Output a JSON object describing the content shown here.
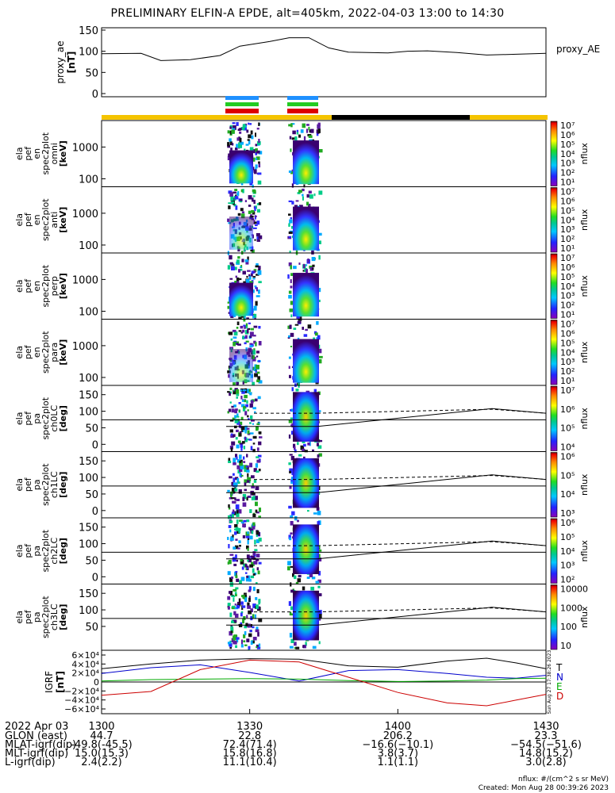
{
  "title": "PRELIMINARY ELFIN-A EPDE, alt=405km, 2022-04-03 13:00 to 14:30",
  "colors": {
    "fast": "#1e90ff",
    "green": "#22cc22",
    "red": "#dd0000",
    "yellow": "#f5c400",
    "black": "#000000"
  },
  "chart_data": [
    {
      "type": "line",
      "name": "proxy_ae",
      "ylabel_lines": [
        "proxy_ae",
        "[nT]"
      ],
      "legend": "proxy_AE",
      "ylim": [
        0,
        150
      ],
      "yticks": [
        0,
        50,
        100,
        150
      ],
      "x_minutes": [
        0,
        8,
        12,
        18,
        24,
        28,
        34,
        38,
        42,
        46,
        50,
        54,
        58,
        62,
        66,
        72,
        78,
        84,
        90
      ],
      "values": [
        94,
        95,
        78,
        80,
        90,
        112,
        123,
        132,
        132,
        108,
        98,
        97,
        96,
        100,
        101,
        97,
        91,
        93,
        95
      ]
    },
    {
      "type": "heatmap",
      "panels": [
        {
          "ylabel_lines": [
            "ela",
            "pef",
            "en",
            "spec2plot",
            "omni",
            "[keV]"
          ],
          "yticks": [
            "1000",
            "100"
          ],
          "cbar_ticks": [
            "10⁷",
            "10⁶",
            "10⁵",
            "10⁴",
            "10³",
            "10²",
            "10¹"
          ],
          "cbar_label": "nflux"
        },
        {
          "ylabel_lines": [
            "ela",
            "pef",
            "en",
            "spec2plot",
            "anti",
            "[keV]"
          ],
          "yticks": [
            "1000",
            "100"
          ],
          "cbar_ticks": [
            "10⁷",
            "10⁶",
            "10⁵",
            "10⁴",
            "10³",
            "10²",
            "10¹"
          ],
          "cbar_label": "nflux"
        },
        {
          "ylabel_lines": [
            "ela",
            "pef",
            "en",
            "spec2plot",
            "perp",
            "[keV]"
          ],
          "yticks": [
            "1000",
            "100"
          ],
          "cbar_ticks": [
            "10⁷",
            "10⁶",
            "10⁵",
            "10⁴",
            "10³",
            "10²",
            "10¹"
          ],
          "cbar_label": "nflux"
        },
        {
          "ylabel_lines": [
            "ela",
            "pef",
            "en",
            "spec2plot",
            "para",
            "[keV]"
          ],
          "yticks": [
            "1000",
            "100"
          ],
          "cbar_ticks": [
            "10⁷",
            "10⁶",
            "10⁵",
            "10⁴",
            "10³",
            "10²",
            "10¹"
          ],
          "cbar_label": "nflux"
        },
        {
          "ylabel_lines": [
            "ela",
            "pef",
            "pa",
            "spec2plot",
            "ch0LC",
            "[deg]"
          ],
          "yticks": [
            "150",
            "100",
            "50",
            "0"
          ],
          "cbar_ticks": [
            "10⁷",
            "10⁶",
            "10⁵",
            "10⁴"
          ],
          "cbar_label": "nflux"
        },
        {
          "ylabel_lines": [
            "ela",
            "pef",
            "pa",
            "spec2plot",
            "ch1LC",
            "[deg]"
          ],
          "yticks": [
            "150",
            "100",
            "50",
            "0"
          ],
          "cbar_ticks": [
            "10⁶",
            "10⁵",
            "10⁴",
            "10³"
          ],
          "cbar_label": "nflux"
        },
        {
          "ylabel_lines": [
            "ela",
            "pef",
            "pa",
            "spec2plot",
            "ch2LC",
            "[deg]"
          ],
          "yticks": [
            "150",
            "100",
            "50",
            "0"
          ],
          "cbar_ticks": [
            "10⁶",
            "10⁵",
            "10⁴",
            "10³",
            "10²"
          ],
          "cbar_label": "nflux"
        },
        {
          "ylabel_lines": [
            "ela",
            "pef",
            "pa",
            "spec2plot",
            "ch3LC",
            "[deg]"
          ],
          "yticks": [
            "150",
            "100",
            "50"
          ],
          "cbar_ticks": [
            "10000",
            "1000",
            "100",
            "10"
          ],
          "cbar_label": "nflux"
        }
      ]
    },
    {
      "type": "line",
      "name": "IGRF",
      "ylabel_lines": [
        "IGRF",
        "[nT]"
      ],
      "ylim": [
        -60000,
        60000
      ],
      "yticks": [
        "6×10⁴",
        "4×10⁴",
        "2×10⁴",
        "0",
        "−2×10⁴",
        "−4×10⁴",
        "−6×10⁴"
      ],
      "series": [
        {
          "name": "T",
          "color": "#000000"
        },
        {
          "name": "N",
          "color": "#0000cc"
        },
        {
          "name": "E",
          "color": "#00aa00"
        },
        {
          "name": "D",
          "color": "#cc0000"
        }
      ],
      "x_minutes": [
        0,
        10,
        20,
        30,
        40,
        50,
        60,
        70,
        78,
        84,
        90
      ],
      "T": [
        28000,
        38000,
        46000,
        49000,
        48000,
        34000,
        31000,
        44000,
        50000,
        40000,
        28000
      ],
      "N": [
        18000,
        30000,
        36000,
        20000,
        2000,
        24000,
        26000,
        18000,
        10000,
        8000,
        14000
      ],
      "E": [
        2000,
        5000,
        6000,
        7000,
        6000,
        3000,
        1000,
        2000,
        4000,
        7000,
        8000
      ],
      "D": [
        -28000,
        -20000,
        26000,
        46000,
        42000,
        10000,
        -22000,
        -44000,
        -50000,
        -38000,
        -26000
      ]
    }
  ],
  "side_note": "Sun Aug 27 17:38:26 2023",
  "time_axis": {
    "row_label": "2022 Apr 03",
    "ticks": [
      "1300",
      "1330",
      "1400",
      "1430"
    ]
  },
  "ephemeris": [
    {
      "label": "GLON (east)",
      "values": [
        "44.7",
        "22.8",
        "206.2",
        "23.3"
      ]
    },
    {
      "label": "MLAT-igrf(dip)",
      "values": [
        "-49.8(-45.5)",
        "72.4(71.4)",
        "−16.6(−10.1)",
        "−54.5(−51.6)"
      ]
    },
    {
      "label": "MLT-igrf(dip)",
      "values": [
        "15.0(15.3)",
        "15.8(16.8)",
        "3.8(3.7)",
        "14.8(15.2)"
      ]
    },
    {
      "label": "L-igrf(dip)",
      "values": [
        "2.4(2.2)",
        "11.1(10.4)",
        "1.1(1.1)",
        "3.0(2.8)"
      ]
    }
  ],
  "footer": {
    "units": "nflux: #/(cm^2 s sr MeV)",
    "created": "Created: Mon Aug 28 00:39:26 2023"
  }
}
